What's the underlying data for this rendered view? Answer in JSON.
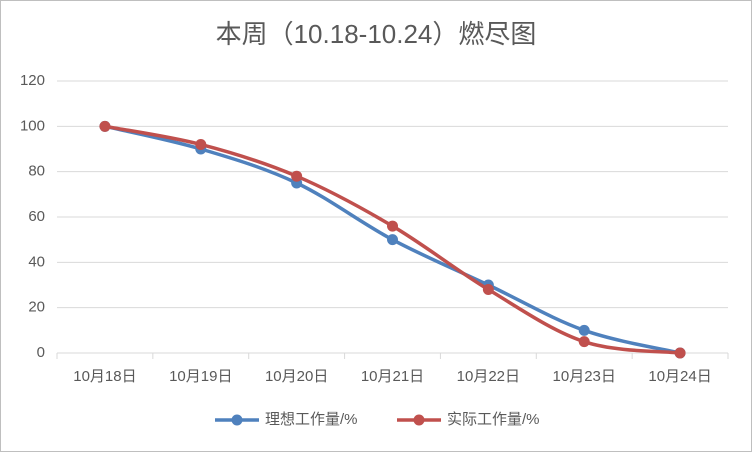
{
  "chart_data": {
    "type": "line",
    "title": "本周（10.18-10.24）燃尽图",
    "categories": [
      "10月18日",
      "10月19日",
      "10月20日",
      "10月21日",
      "10月22日",
      "10月23日",
      "10月24日"
    ],
    "series": [
      {
        "name": "理想工作量/%",
        "color": "#4f81bd",
        "values": [
          100,
          90,
          75,
          50,
          30,
          10,
          0
        ]
      },
      {
        "name": "实际工作量/%",
        "color": "#c0504d",
        "values": [
          100,
          92,
          78,
          56,
          28,
          5,
          0
        ]
      }
    ],
    "ylim": [
      0,
      120
    ],
    "yticks": [
      0,
      20,
      40,
      60,
      80,
      100,
      120
    ],
    "grid": true,
    "legend": "bottom"
  }
}
